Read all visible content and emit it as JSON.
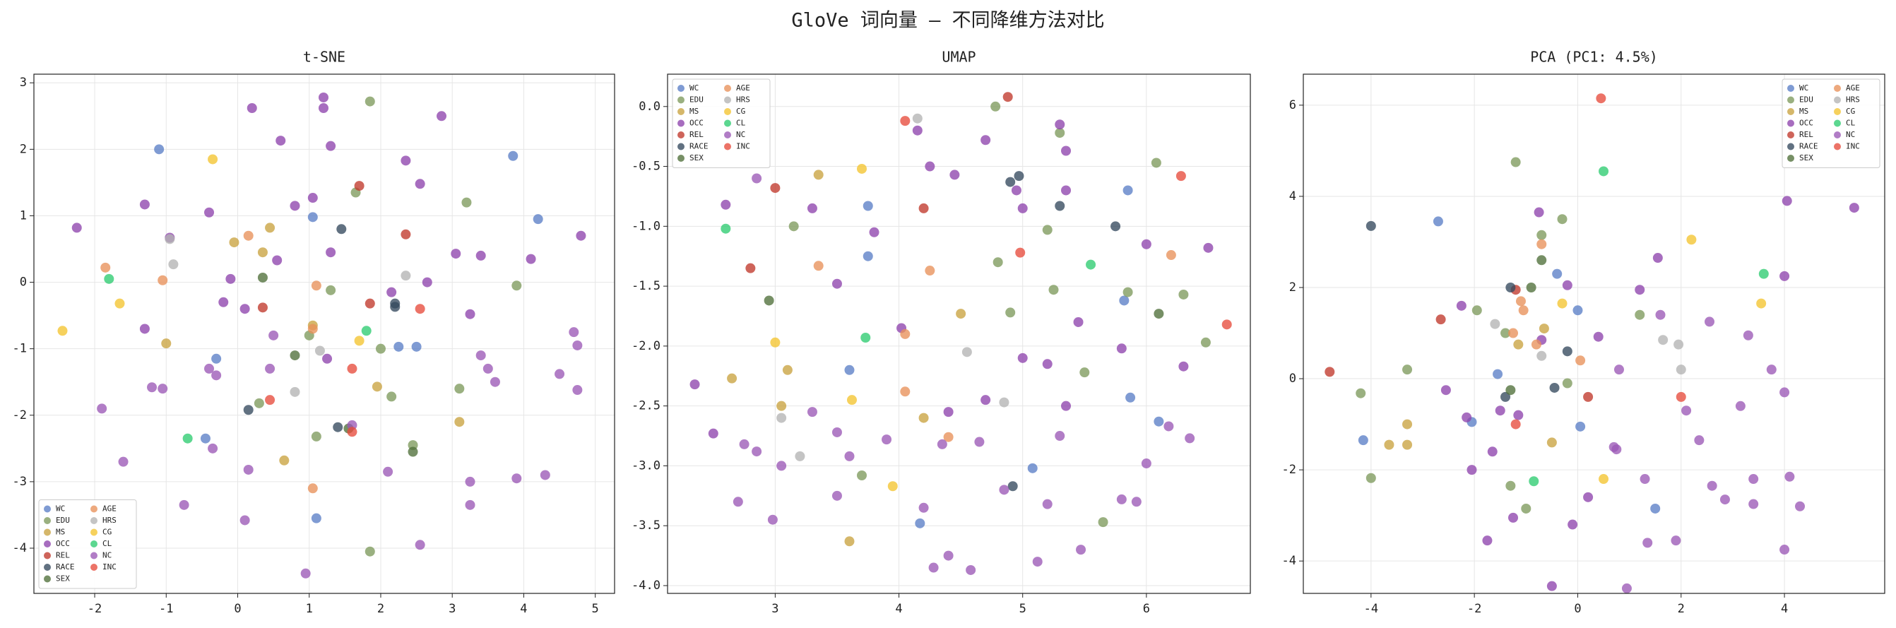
{
  "title": "GloVe 词向量 — 不同降维方法对比",
  "chart_data": [
    {
      "type": "scatter",
      "title": "t-SNE",
      "xlim": [
        -2.85,
        5.27
      ],
      "ylim": [
        -4.68,
        3.13
      ],
      "xticks": [
        -2,
        -1,
        0,
        1,
        2,
        3,
        4,
        5
      ],
      "yticks": [
        -4,
        -3,
        -2,
        -1,
        0,
        1,
        2,
        3
      ],
      "grid": true,
      "legend": "lower left",
      "series": [
        {
          "name": "WC",
          "color": "#5b7fc7",
          "x": [
            -1.1,
            3.85,
            4.2,
            1.05,
            2.25,
            2.5,
            -0.3,
            -0.45,
            1.1
          ],
          "y": [
            2.0,
            1.9,
            0.95,
            0.98,
            -0.97,
            -0.97,
            -1.15,
            -2.35,
            -3.55
          ]
        },
        {
          "name": "EDU",
          "color": "#7d9a5c",
          "x": [
            1.85,
            1.65,
            3.2,
            3.9,
            1.3,
            1.0,
            2.0,
            3.1,
            2.15,
            1.1,
            0.3,
            2.45,
            1.85
          ],
          "y": [
            2.72,
            1.35,
            1.2,
            -0.05,
            -0.12,
            -0.8,
            -1.0,
            -1.6,
            -1.72,
            -2.32,
            -1.82,
            -2.45,
            -4.05
          ]
        },
        {
          "name": "MS",
          "color": "#c9a340",
          "x": [
            0.45,
            0.35,
            -0.05,
            -1.0,
            1.95,
            3.1,
            0.65,
            1.05
          ],
          "y": [
            0.82,
            0.45,
            0.6,
            -0.92,
            -1.57,
            -2.1,
            -2.68,
            -0.65
          ]
        },
        {
          "name": "OCC",
          "color": "#8e44ad",
          "x": [
            0.2,
            1.2,
            1.2,
            2.85,
            0.6,
            1.3,
            2.35,
            2.55,
            -1.3,
            -0.4,
            0.8,
            1.05,
            -2.25,
            -0.95,
            0.55,
            1.3,
            3.05,
            3.4,
            4.8,
            4.1,
            -0.1,
            0.1,
            2.65,
            2.15,
            3.25,
            -1.3,
            -0.2,
            1.25
          ],
          "y": [
            2.62,
            2.78,
            2.62,
            2.5,
            2.13,
            2.05,
            1.83,
            1.48,
            1.17,
            1.05,
            1.15,
            1.27,
            0.82,
            0.67,
            0.33,
            0.45,
            0.43,
            0.4,
            0.7,
            0.35,
            0.05,
            -0.4,
            0.0,
            -0.15,
            -0.48,
            -0.7,
            -0.3,
            -1.15
          ]
        },
        {
          "name": "REL",
          "color": "#c0392b",
          "x": [
            1.7,
            2.35,
            0.35,
            1.85
          ],
          "y": [
            1.45,
            0.72,
            -0.38,
            -0.32
          ]
        },
        {
          "name": "RACE",
          "color": "#34495e",
          "x": [
            1.45,
            2.2,
            2.2,
            0.15,
            1.4
          ],
          "y": [
            0.8,
            -0.32,
            -0.37,
            -1.92,
            -2.18
          ]
        },
        {
          "name": "SEX",
          "color": "#4f6f3a",
          "x": [
            0.35,
            0.8,
            1.55,
            2.45
          ],
          "y": [
            0.07,
            -1.1,
            -2.2,
            -2.55
          ]
        },
        {
          "name": "AGE",
          "color": "#e8915a",
          "x": [
            -1.85,
            0.15,
            -1.05,
            1.1,
            1.05,
            1.05
          ],
          "y": [
            0.22,
            0.7,
            0.03,
            -0.05,
            -0.7,
            -3.1
          ]
        },
        {
          "name": "HRS",
          "color": "#b3b3b3",
          "x": [
            -0.95,
            -0.9,
            2.35,
            0.8,
            1.15
          ],
          "y": [
            0.65,
            0.27,
            0.1,
            -1.65,
            -1.03
          ]
        },
        {
          "name": "CG",
          "color": "#f4c430",
          "x": [
            -0.35,
            -2.45,
            -1.65,
            1.7
          ],
          "y": [
            1.85,
            -0.73,
            -0.32,
            -0.88
          ]
        },
        {
          "name": "CL",
          "color": "#2ecc71",
          "x": [
            -1.8,
            1.8,
            -0.7
          ],
          "y": [
            0.05,
            -0.73,
            -2.35
          ]
        },
        {
          "name": "NC",
          "color": "#9b59b6",
          "x": [
            3.4,
            3.5,
            3.6,
            4.7,
            4.75,
            4.75,
            4.5,
            -1.2,
            -1.05,
            -0.4,
            -0.3,
            0.45,
            -1.9,
            -0.35,
            -1.6,
            0.15,
            1.6,
            2.1,
            3.25,
            3.9,
            4.3,
            -0.75,
            0.1,
            3.25,
            2.55,
            0.95,
            0.5
          ],
          "y": [
            -1.1,
            -1.3,
            -1.5,
            -0.75,
            -0.95,
            -1.62,
            -1.38,
            -1.58,
            -1.6,
            -1.3,
            -1.4,
            -1.3,
            -1.9,
            -2.5,
            -2.7,
            -2.82,
            -2.15,
            -2.85,
            -3.0,
            -2.95,
            -2.9,
            -3.35,
            -3.58,
            -3.35,
            -3.95,
            -4.38,
            -0.8
          ]
        },
        {
          "name": "INC",
          "color": "#e74c3c",
          "x": [
            2.55,
            1.6,
            0.45,
            1.6
          ],
          "y": [
            -0.4,
            -1.3,
            -1.77,
            -2.25
          ]
        }
      ]
    },
    {
      "type": "scatter",
      "title": "UMAP",
      "xlim": [
        2.13,
        6.84
      ],
      "ylim": [
        -4.065,
        0.27
      ],
      "xticks": [
        3,
        4,
        5,
        6
      ],
      "yticks": [
        {
          "value": 0,
          "label": "0.0"
        },
        -0.5,
        {
          "value": -1,
          "label": "-1.0"
        },
        -1.5,
        {
          "value": -2,
          "label": "-2.0"
        },
        -2.5,
        {
          "value": -3,
          "label": "-3.0"
        },
        -3.5,
        {
          "value": -4,
          "label": "-4.0"
        }
      ],
      "grid": true,
      "legend": "upper left",
      "series": [
        {
          "name": "WC",
          "color": "#5b7fc7",
          "x": [
            3.75,
            3.75,
            5.85,
            5.82,
            3.6,
            5.87,
            6.1,
            5.08,
            4.17
          ],
          "y": [
            -0.83,
            -1.25,
            -0.7,
            -1.62,
            -2.2,
            -2.43,
            -2.63,
            -3.02,
            -3.48
          ]
        },
        {
          "name": "EDU",
          "color": "#7d9a5c",
          "x": [
            4.78,
            6.08,
            5.3,
            3.15,
            4.8,
            5.2,
            5.85,
            6.3,
            5.5,
            4.9,
            5.65,
            6.48,
            3.7,
            5.25
          ],
          "y": [
            0.0,
            -0.47,
            -0.22,
            -1.0,
            -1.3,
            -1.03,
            -1.55,
            -1.57,
            -2.22,
            -1.72,
            -3.47,
            -1.97,
            -3.08,
            -1.53
          ]
        },
        {
          "name": "MS",
          "color": "#c9a340",
          "x": [
            3.35,
            2.65,
            3.1,
            3.05,
            4.5,
            3.6,
            4.2
          ],
          "y": [
            -0.57,
            -2.27,
            -2.2,
            -2.5,
            -1.73,
            -3.63,
            -2.6
          ]
        },
        {
          "name": "OCC",
          "color": "#8e44ad",
          "x": [
            4.7,
            4.25,
            4.45,
            5.3,
            5.35,
            2.6,
            3.3,
            3.8,
            4.15,
            5.35,
            4.95,
            5.0,
            6.0,
            6.5,
            4.02,
            3.5,
            5.0,
            5.2,
            5.45,
            5.8,
            6.3,
            5.35,
            4.7,
            4.4,
            2.35,
            2.5
          ],
          "y": [
            -0.28,
            -0.5,
            -0.57,
            -0.15,
            -0.37,
            -0.82,
            -0.85,
            -1.05,
            -0.2,
            -0.7,
            -0.7,
            -0.85,
            -1.15,
            -1.18,
            -1.85,
            -1.48,
            -2.1,
            -2.15,
            -1.8,
            -2.02,
            -2.17,
            -2.5,
            -2.45,
            -2.55,
            -2.32,
            -2.73
          ]
        },
        {
          "name": "REL",
          "color": "#c0392b",
          "x": [
            4.88,
            3.0,
            4.2,
            2.8
          ],
          "y": [
            0.08,
            -0.68,
            -0.85,
            -1.35
          ]
        },
        {
          "name": "RACE",
          "color": "#34495e",
          "x": [
            4.9,
            4.97,
            5.3,
            5.75,
            4.92
          ],
          "y": [
            -0.63,
            -0.58,
            -0.83,
            -1.0,
            -3.17
          ]
        },
        {
          "name": "SEX",
          "color": "#4f6f3a",
          "x": [
            2.95,
            6.1
          ],
          "y": [
            -1.62,
            -1.73
          ]
        },
        {
          "name": "AGE",
          "color": "#e8915a",
          "x": [
            3.35,
            4.25,
            4.05,
            6.2,
            4.05,
            4.4
          ],
          "y": [
            -1.33,
            -1.37,
            -1.9,
            -1.24,
            -2.38,
            -2.76
          ]
        },
        {
          "name": "HRS",
          "color": "#b3b3b3",
          "x": [
            4.15,
            4.55,
            4.85,
            3.05,
            3.2
          ],
          "y": [
            -0.1,
            -2.05,
            -2.47,
            -2.6,
            -2.92
          ]
        },
        {
          "name": "CG",
          "color": "#f4c430",
          "x": [
            3.7,
            3.0,
            3.62,
            3.95
          ],
          "y": [
            -0.52,
            -1.97,
            -2.45,
            -3.17
          ]
        },
        {
          "name": "CL",
          "color": "#2ecc71",
          "x": [
            2.6,
            3.73,
            5.55
          ],
          "y": [
            -1.02,
            -1.93,
            -1.32
          ]
        },
        {
          "name": "NC",
          "color": "#9b59b6",
          "x": [
            3.3,
            3.5,
            2.75,
            2.85,
            3.05,
            3.6,
            3.9,
            4.35,
            4.65,
            2.7,
            3.5,
            2.98,
            4.85,
            5.2,
            5.3,
            5.8,
            5.92,
            6.0,
            6.18,
            6.35,
            4.28,
            4.4,
            4.58,
            5.12,
            5.47,
            4.2,
            2.85
          ],
          "y": [
            -2.55,
            -2.72,
            -2.82,
            -2.88,
            -3.0,
            -2.92,
            -2.78,
            -2.82,
            -2.8,
            -3.3,
            -3.25,
            -3.45,
            -3.2,
            -3.32,
            -2.75,
            -3.28,
            -3.3,
            -2.98,
            -2.67,
            -2.77,
            -3.85,
            -3.75,
            -3.87,
            -3.8,
            -3.7,
            -3.35,
            -0.6
          ]
        },
        {
          "name": "INC",
          "color": "#e74c3c",
          "x": [
            4.05,
            4.98,
            6.28,
            6.65
          ],
          "y": [
            -0.12,
            -1.22,
            -0.58,
            -1.82
          ]
        }
      ]
    },
    {
      "type": "scatter",
      "title": "PCA (PC1: 4.5%)",
      "xlim": [
        -5.31,
        5.94
      ],
      "ylim": [
        -4.71,
        6.68
      ],
      "xticks": [
        -4,
        -2,
        0,
        2,
        4
      ],
      "yticks": [
        -4,
        -2,
        0,
        2,
        4,
        6
      ],
      "grid": true,
      "legend": "upper right",
      "series": [
        {
          "name": "WC",
          "color": "#5b7fc7",
          "x": [
            -2.7,
            -0.4,
            0,
            -1.55,
            -2.05,
            0.05,
            -4.15,
            1.5
          ],
          "y": [
            3.45,
            2.3,
            1.5,
            0.1,
            -0.95,
            -1.05,
            -1.35,
            -2.85
          ]
        },
        {
          "name": "EDU",
          "color": "#7d9a5c",
          "x": [
            -1.2,
            -0.3,
            -0.7,
            -3.3,
            -4.2,
            -4.0,
            -1.95,
            -1.4,
            1.2,
            -0.2,
            -1.3,
            -1.0
          ],
          "y": [
            4.75,
            3.5,
            3.15,
            0.2,
            -0.32,
            -2.18,
            1.5,
            1.0,
            1.4,
            -0.1,
            -2.35,
            -2.85
          ]
        },
        {
          "name": "MS",
          "color": "#c9a340",
          "x": [
            -0.65,
            -1.15,
            -3.3,
            -3.3,
            -3.65,
            -0.5
          ],
          "y": [
            1.1,
            0.75,
            -1.0,
            -1.45,
            -1.45,
            -1.4
          ]
        },
        {
          "name": "OCC",
          "color": "#8e44ad",
          "x": [
            -0.75,
            -0.2,
            1.55,
            1.2,
            4.05,
            5.35,
            4.0,
            -2.25,
            -2.55,
            -2.15,
            -1.5,
            -1.15,
            -0.7,
            -1.65,
            -2.05,
            -1.75,
            -1.25,
            -0.5,
            -0.1,
            0.2,
            0.4
          ],
          "y": [
            3.65,
            2.05,
            2.65,
            1.95,
            3.9,
            3.75,
            2.25,
            1.6,
            -0.25,
            -0.85,
            -0.7,
            -0.8,
            0.85,
            -1.6,
            -2.0,
            -3.55,
            -3.05,
            -4.55,
            -3.2,
            -2.6,
            0.92
          ]
        },
        {
          "name": "REL",
          "color": "#c0392b",
          "x": [
            -4.8,
            -2.65,
            -1.2,
            0.2
          ],
          "y": [
            0.15,
            1.3,
            1.95,
            -0.4
          ]
        },
        {
          "name": "RACE",
          "color": "#34495e",
          "x": [
            -4.0,
            -1.3,
            -0.2,
            -0.45,
            -1.4
          ],
          "y": [
            3.35,
            2.0,
            0.6,
            -0.2,
            -0.4
          ]
        },
        {
          "name": "SEX",
          "color": "#4f6f3a",
          "x": [
            -0.7,
            -0.9,
            -1.3
          ],
          "y": [
            2.6,
            2.0,
            -0.25
          ]
        },
        {
          "name": "AGE",
          "color": "#e8915a",
          "x": [
            -1.1,
            -1.25,
            -0.8,
            0.05,
            -0.7,
            -1.05
          ],
          "y": [
            1.7,
            1.0,
            0.75,
            0.4,
            2.95,
            1.5
          ]
        },
        {
          "name": "HRS",
          "color": "#b3b3b3",
          "x": [
            -1.6,
            1.65,
            1.95,
            2.0,
            -0.7
          ],
          "y": [
            1.2,
            0.85,
            0.75,
            0.2,
            0.5
          ]
        },
        {
          "name": "CG",
          "color": "#f4c430",
          "x": [
            2.2,
            3.55,
            -0.3,
            0.5
          ],
          "y": [
            3.05,
            1.65,
            1.65,
            -2.2
          ]
        },
        {
          "name": "CL",
          "color": "#2ecc71",
          "x": [
            0.5,
            3.6,
            -0.85
          ],
          "y": [
            4.55,
            2.3,
            -2.25
          ]
        },
        {
          "name": "NC",
          "color": "#9b59b6",
          "x": [
            0.75,
            0.8,
            1.3,
            1.6,
            1.9,
            2.1,
            2.35,
            2.6,
            2.85,
            3.15,
            3.3,
            2.55,
            3.4,
            3.4,
            4.0,
            4.1,
            4.0,
            4.3,
            3.75,
            0.95,
            1.35,
            0.7
          ],
          "y": [
            -1.55,
            0.2,
            -2.2,
            1.4,
            -3.55,
            -0.7,
            -1.35,
            -2.35,
            -2.65,
            -0.6,
            0.95,
            1.25,
            -2.2,
            -2.75,
            -0.3,
            -2.15,
            -3.75,
            -2.8,
            0.2,
            -4.6,
            -3.6,
            -1.5
          ]
        },
        {
          "name": "INC",
          "color": "#e74c3c",
          "x": [
            0.45,
            2.0,
            -1.2
          ],
          "y": [
            6.15,
            -0.4,
            -1.0
          ]
        }
      ]
    }
  ]
}
